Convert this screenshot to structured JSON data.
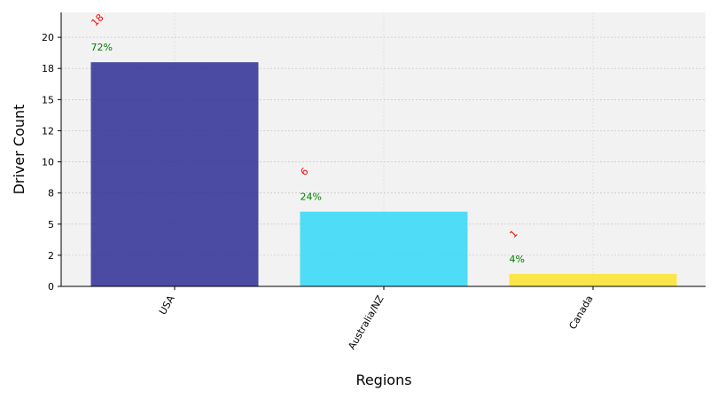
{
  "chart_data": {
    "type": "bar",
    "title": "",
    "xlabel": "Regions",
    "ylabel": "Driver Count",
    "categories": [
      "USA",
      "Australia/NZ",
      "Canada"
    ],
    "values": [
      18,
      6,
      1
    ],
    "value_labels": [
      "18",
      "6",
      "1"
    ],
    "percent_labels": [
      "72%",
      "24%",
      "4%"
    ],
    "colors": [
      "#2e2e96",
      "#33d8f8",
      "#fce32e"
    ],
    "value_label_color": "#ff0000",
    "percent_label_color": "#008000",
    "ylim": [
      0,
      22
    ],
    "yticks": [
      0,
      2.5,
      5,
      7.5,
      10,
      12.5,
      15,
      17.5,
      20
    ],
    "ytick_labels": [
      "0",
      "2",
      "5",
      "8",
      "10",
      "12",
      "15",
      "18",
      "20"
    ],
    "grid": true,
    "legend": "none"
  }
}
